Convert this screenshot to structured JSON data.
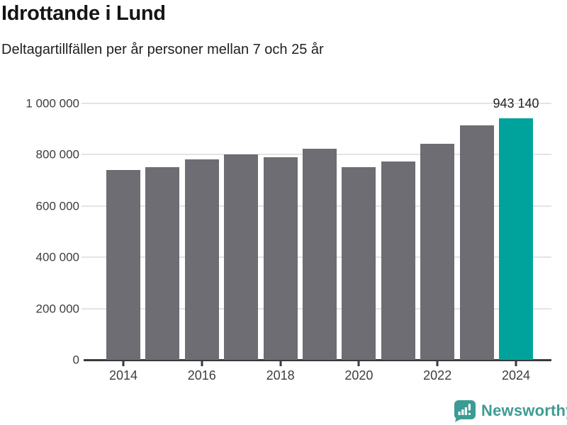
{
  "header": {
    "title": "Idrottande i Lund",
    "subtitle": "Deltagartillfällen per år personer mellan 7 och 25 år"
  },
  "chart_data": {
    "type": "bar",
    "title": "Idrottande i Lund",
    "subtitle": "Deltagartillfällen per år personer mellan 7 och 25 år",
    "categories": [
      "2014",
      "2015",
      "2016",
      "2017",
      "2018",
      "2019",
      "2020",
      "2021",
      "2022",
      "2023",
      "2024"
    ],
    "values": [
      740000,
      751000,
      781000,
      800000,
      789000,
      823000,
      751000,
      773000,
      842000,
      915000,
      943140
    ],
    "highlight_index": 10,
    "highlight_label": "943 140",
    "xlabel": "",
    "ylabel": "",
    "ylim": [
      0,
      1000000
    ],
    "ytick_step": 200000,
    "ytick_labels": [
      "0",
      "200 000",
      "400 000",
      "600 000",
      "800 000",
      "1 000 000"
    ],
    "xtick_labels": [
      "2014",
      "2016",
      "2018",
      "2020",
      "2022",
      "2024"
    ],
    "grid": "horizontal",
    "legend": "none",
    "bar_color": "#6d6d73",
    "highlight_color": "#00a39b"
  },
  "footer": {
    "brand": "Newsworthy",
    "logo_icon": "newsworthy-bar-chart-bubble-icon",
    "brand_color": "#3f9b94",
    "logo_color": "#3b9c94"
  }
}
